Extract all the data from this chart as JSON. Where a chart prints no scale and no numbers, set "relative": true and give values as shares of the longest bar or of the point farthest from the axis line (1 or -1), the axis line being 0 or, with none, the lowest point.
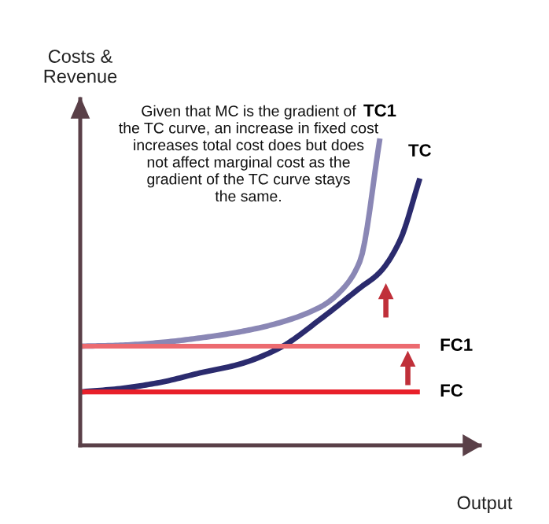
{
  "chart_data": {
    "type": "line",
    "relative": true,
    "xlabel": "Output",
    "ylabel": "Costs &\nRevenue",
    "categories": [
      null,
      null,
      null,
      null,
      null,
      null,
      null,
      null,
      null,
      null,
      null,
      null,
      null,
      null,
      null,
      null,
      null,
      null,
      null,
      null,
      null
    ],
    "series": [
      {
        "name": "TC1",
        "color": "#8a87b5",
        "values": [
          0.323,
          null,
          0.326,
          null,
          0.335,
          null,
          0.35,
          null,
          0.37,
          null,
          0.4,
          null,
          0.45,
          0.5,
          0.6,
          1.0,
          null,
          null,
          null,
          null,
          null
        ]
      },
      {
        "name": "TC",
        "color": "#2b2b6e",
        "values": [
          0.174,
          null,
          0.185,
          null,
          0.205,
          null,
          0.236,
          null,
          0.265,
          null,
          0.318,
          null,
          0.41,
          null,
          0.513,
          0.564,
          0.667,
          0.87,
          null,
          null,
          null
        ]
      },
      {
        "name": "FC1",
        "color": "#ec6b70",
        "values": [
          0.323,
          null,
          null,
          null,
          null,
          null,
          null,
          null,
          null,
          null,
          null,
          null,
          null,
          null,
          null,
          null,
          null,
          0.323,
          null,
          null,
          null
        ]
      },
      {
        "name": "FC",
        "color": "#e8202a",
        "values": [
          0.174,
          null,
          null,
          null,
          null,
          null,
          null,
          null,
          null,
          null,
          null,
          null,
          null,
          null,
          null,
          null,
          null,
          0.174,
          null,
          null,
          null
        ]
      }
    ],
    "annotations": [
      "Given that MC is the gradient of\nthe TC curve, an increase in fixed cost\nincreases total cost does but does\nnot affect marginal cost as the\ngradient of the TC curve stays\nthe same."
    ],
    "legend": false,
    "marker": "none",
    "line_style": "solid"
  }
}
